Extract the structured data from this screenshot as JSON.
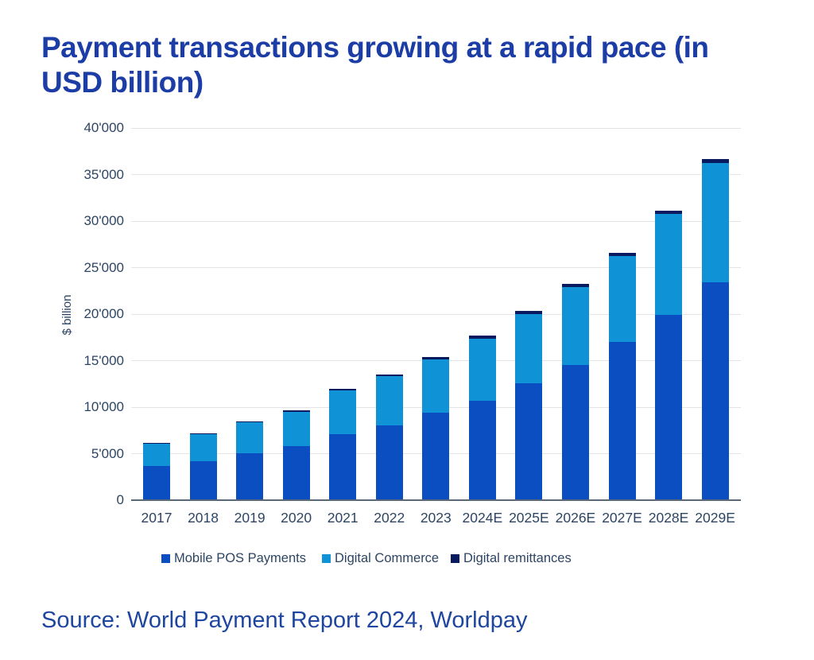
{
  "page": {
    "title": "Payment transactions growing at a rapid pace (in USD billion)",
    "source": "Source: World Payment Report 2024, Worldpay"
  },
  "colors": {
    "background": "#ffffff",
    "title_text": "#1c3ca6",
    "source_text": "#1e459f",
    "axis_text": "#2d4563",
    "gridline": "#e4e4e4",
    "baseline": "#5b6876"
  },
  "chart_data": {
    "type": "bar",
    "stacked": true,
    "title": "Payment transactions growing at a rapid pace (in USD billion)",
    "xlabel": "",
    "ylabel": "$ billion",
    "ylim": [
      0,
      40000
    ],
    "ytick_step": 5000,
    "ytick_labels": [
      "0",
      "5'000",
      "10'000",
      "15'000",
      "20'000",
      "25'000",
      "30'000",
      "35'000",
      "40'000"
    ],
    "grid": "horizontal-only",
    "legend_position": "bottom",
    "categories": [
      "2017",
      "2018",
      "2019",
      "2020",
      "2021",
      "2022",
      "2023",
      "2024E",
      "2025E",
      "2026E",
      "2027E",
      "2028E",
      "2029E"
    ],
    "series": [
      {
        "name": "Mobile POS Payments",
        "color": "#0b4ec2",
        "values": [
          3700,
          4200,
          5050,
          5820,
          7120,
          8000,
          9400,
          10700,
          12550,
          14550,
          17000,
          19950,
          23450
        ]
      },
      {
        "name": "Digital Commerce",
        "color": "#0f93d6",
        "values": [
          2380,
          2890,
          3320,
          3660,
          4700,
          5320,
          5770,
          6690,
          7460,
          8380,
          9250,
          10820,
          12830
        ]
      },
      {
        "name": "Digital remittances",
        "color": "#0a1a5e",
        "values": [
          100,
          110,
          130,
          150,
          180,
          200,
          230,
          260,
          290,
          320,
          350,
          380,
          420
        ]
      }
    ],
    "approx_totals": [
      6180,
      7200,
      8500,
      9630,
      12000,
      13520,
      15400,
      17650,
      20300,
      23250,
      26600,
      31150,
      36700
    ]
  }
}
